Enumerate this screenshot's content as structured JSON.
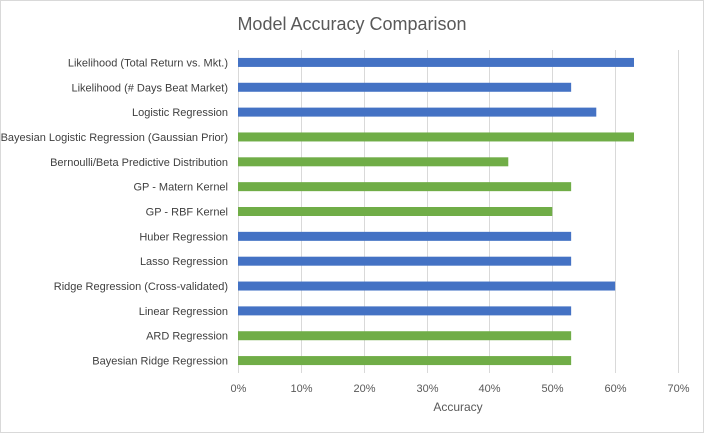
{
  "chart_data": {
    "type": "bar",
    "orientation": "horizontal",
    "title": "Model Accuracy Comparison",
    "xlabel": "Accuracy",
    "ylabel": "",
    "xlim": [
      0,
      0.7
    ],
    "x_ticks": [
      "0%",
      "10%",
      "20%",
      "30%",
      "40%",
      "50%",
      "60%",
      "70%"
    ],
    "grid": true,
    "categories": [
      "Likelihood (Total Return vs. Mkt.)",
      "Likelihood (# Days Beat Market)",
      "Logistic Regression",
      "Bayesian Logistic Regression (Gaussian Prior)",
      "Bernoulli/Beta Predictive Distribution",
      "GP - Matern Kernel",
      "GP - RBF Kernel",
      "Huber Regression",
      "Lasso Regression",
      "Ridge Regression (Cross-validated)",
      "Linear Regression",
      "ARD Regression",
      "Bayesian Ridge Regression"
    ],
    "values": [
      0.63,
      0.53,
      0.57,
      0.63,
      0.43,
      0.53,
      0.5,
      0.53,
      0.53,
      0.6,
      0.53,
      0.53,
      0.53
    ],
    "bar_colors": [
      "#4472c4",
      "#4472c4",
      "#4472c4",
      "#70ad47",
      "#70ad47",
      "#70ad47",
      "#70ad47",
      "#4472c4",
      "#4472c4",
      "#4472c4",
      "#4472c4",
      "#70ad47",
      "#70ad47"
    ]
  }
}
